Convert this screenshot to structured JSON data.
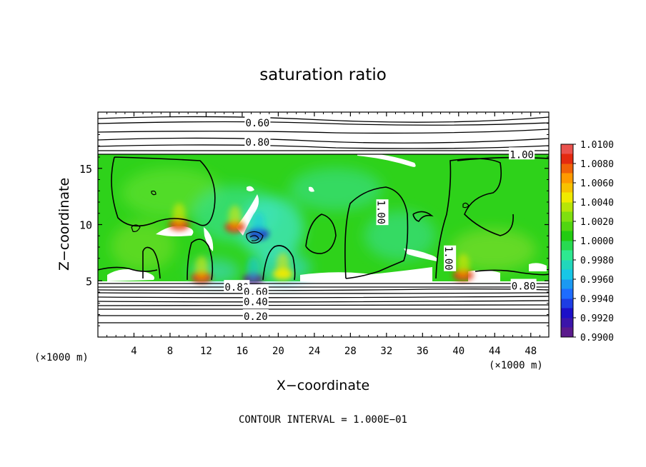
{
  "chart_data": {
    "type": "heatmap",
    "title": "saturation ratio",
    "xlabel": "X−coordinate",
    "ylabel": "Z−coordinate",
    "x_unit_label_left": "(×1000 m)",
    "x_unit_label_right": "(×1000 m)",
    "xlim": [
      0,
      50
    ],
    "ylim": [
      0,
      20
    ],
    "x_ticks": [
      4,
      8,
      12,
      16,
      20,
      24,
      28,
      32,
      36,
      40,
      44,
      48
    ],
    "x_tick_labels": [
      "4",
      "8",
      "12",
      "16",
      "20",
      "24",
      "28",
      "32",
      "36",
      "40",
      "44",
      "48"
    ],
    "y_ticks": [
      5,
      10,
      15
    ],
    "y_tick_labels": [
      "5",
      "10",
      "15"
    ],
    "footer": "CONTOUR INTERVAL = 1.000E−01",
    "colorbar": {
      "min": 0.99,
      "max": 1.01,
      "levels": [
        {
          "value": 0.99,
          "label": "0.9900",
          "color": "#5a1a8c"
        },
        {
          "value": 0.992,
          "label": "0.9920",
          "color": "#1c0fc8"
        },
        {
          "value": 0.994,
          "label": "0.9940",
          "color": "#1e6cff"
        },
        {
          "value": 0.996,
          "label": "0.9960",
          "color": "#17c6e6"
        },
        {
          "value": 0.998,
          "label": "0.9980",
          "color": "#2ee890"
        },
        {
          "value": 1.0,
          "label": "1.0000",
          "color": "#22cc11"
        },
        {
          "value": 1.002,
          "label": "1.0020",
          "color": "#7fe010"
        },
        {
          "value": 1.004,
          "label": "1.0040",
          "color": "#f0ea00"
        },
        {
          "value": 1.006,
          "label": "1.0060",
          "color": "#ff9a00"
        },
        {
          "value": 1.008,
          "label": "1.0080",
          "color": "#e42a10"
        },
        {
          "value": 1.01,
          "label": "1.0100",
          "color": "#f07a8a"
        }
      ]
    },
    "contour_labels": [
      {
        "text": "0.60",
        "x": 17.7,
        "y": 19.1
      },
      {
        "text": "0.80",
        "x": 17.7,
        "y": 17.4
      },
      {
        "text": "1.00",
        "x": 47.0,
        "y": 16.3
      },
      {
        "text": "1.00",
        "x": 31.5,
        "y": 11.1
      },
      {
        "text": "1.00",
        "x": 39.0,
        "y": 7.0
      },
      {
        "text": "0.80",
        "x": 15.4,
        "y": 4.5
      },
      {
        "text": "0.60",
        "x": 17.5,
        "y": 4.1
      },
      {
        "text": "0.40",
        "x": 17.5,
        "y": 3.2
      },
      {
        "text": "0.20",
        "x": 17.5,
        "y": 1.9
      },
      {
        "text": "0.80",
        "x": 47.2,
        "y": 4.6
      }
    ],
    "hotspots": [
      {
        "x": 11.5,
        "y": 5.3,
        "value": 1.009
      },
      {
        "x": 17.2,
        "y": 5.2,
        "value": 0.991
      },
      {
        "x": 20.5,
        "y": 5.6,
        "value": 1.005
      },
      {
        "x": 40.5,
        "y": 5.5,
        "value": 1.009
      },
      {
        "x": 9.0,
        "y": 10.0,
        "value": 1.008
      },
      {
        "x": 15.2,
        "y": 9.8,
        "value": 1.008
      },
      {
        "x": 17.8,
        "y": 9.2,
        "value": 0.993
      }
    ]
  }
}
